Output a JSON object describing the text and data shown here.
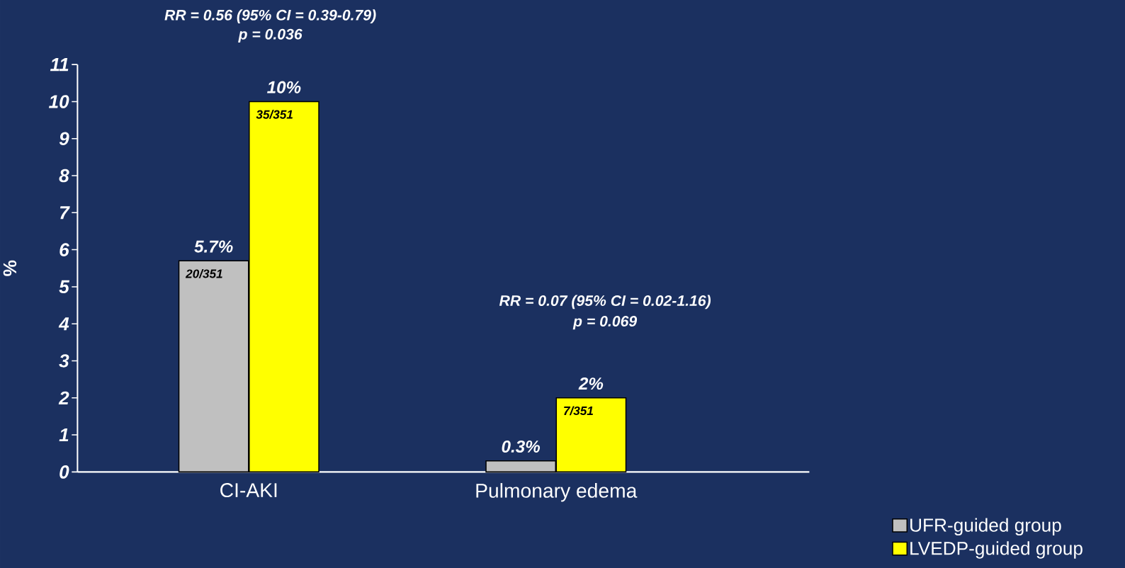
{
  "chart_data": {
    "type": "bar",
    "categories": [
      "CI-AKI",
      "Pulmonary edema"
    ],
    "series": [
      {
        "name": "UFR-guided group",
        "color": "#c0c0c0",
        "values": [
          5.7,
          0.3
        ],
        "value_labels": [
          "5.7%",
          "0.3%"
        ]
      },
      {
        "name": "LVEDP-guided group",
        "color": "#ffff00",
        "values": [
          10,
          2
        ],
        "value_labels": [
          "10%",
          "2%"
        ]
      }
    ],
    "ylabel": "%",
    "ylim": [
      0,
      11
    ],
    "yticks": [
      0,
      1,
      2,
      3,
      4,
      5,
      6,
      7,
      8,
      9,
      10,
      11
    ],
    "legend": "bottom right",
    "annotations": [
      "RR = 0.56 (95% CI = 0.39-0.79)",
      "p = 0.036",
      "RR = 0.07 (95% CI = 0.02-1.16)",
      "p = 0.069",
      {
        "text": "20/351",
        "x": "CI-AKI",
        "y": 5.7
      },
      {
        "text": "35/351",
        "x": "CI-AKI",
        "y": 10
      },
      {
        "text": "7/351",
        "x": "Pulmonary edema",
        "y": 2
      }
    ]
  }
}
